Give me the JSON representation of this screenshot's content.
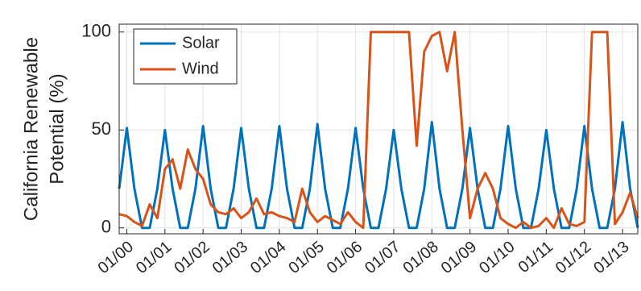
{
  "chart_data": {
    "type": "line",
    "ylabel": [
      "California Renewable",
      "Potential (%)"
    ],
    "x": [
      -0.2,
      0,
      0.2,
      0.4,
      0.6,
      0.8,
      1.0,
      1.2,
      1.4,
      1.6,
      1.8,
      2.0,
      2.2,
      2.4,
      2.6,
      2.8,
      3.0,
      3.2,
      3.4,
      3.6,
      3.8,
      4.0,
      4.2,
      4.4,
      4.6,
      4.8,
      5.0,
      5.2,
      5.4,
      5.6,
      5.8,
      6.0,
      6.2,
      6.4,
      6.6,
      6.8,
      7.0,
      7.2,
      7.4,
      7.6,
      7.8,
      8.0,
      8.2,
      8.4,
      8.6,
      8.8,
      9.0,
      9.2,
      9.4,
      9.6,
      9.8,
      10.0,
      10.2,
      10.4,
      10.6,
      10.8,
      11.0,
      11.2,
      11.4,
      11.6,
      11.8,
      12.0,
      12.2,
      12.4,
      12.6,
      12.8,
      13.0,
      13.2,
      13.4
    ],
    "series": [
      {
        "name": "Solar",
        "color": "#0072bd",
        "values": [
          20,
          51,
          20,
          0,
          0,
          20,
          50,
          20,
          0,
          0,
          20,
          52,
          20,
          0,
          0,
          20,
          51,
          20,
          0,
          0,
          20,
          52,
          20,
          0,
          0,
          20,
          53,
          20,
          0,
          0,
          20,
          51,
          20,
          0,
          0,
          20,
          50,
          20,
          0,
          0,
          20,
          54,
          20,
          0,
          0,
          20,
          51,
          20,
          0,
          0,
          20,
          52,
          20,
          0,
          0,
          20,
          50,
          20,
          0,
          0,
          20,
          52,
          20,
          0,
          0,
          20,
          54,
          20,
          0
        ]
      },
      {
        "name": "Wind",
        "color": "#d95319",
        "values": [
          7,
          6,
          3,
          1,
          12,
          5,
          30,
          35,
          20,
          40,
          30,
          25,
          12,
          8,
          7,
          10,
          5,
          8,
          15,
          7,
          8,
          6,
          5,
          3,
          20,
          8,
          3,
          6,
          4,
          2,
          8,
          3,
          0,
          100,
          100,
          100,
          100,
          100,
          100,
          42,
          90,
          98,
          100,
          80,
          100,
          50,
          5,
          20,
          28,
          20,
          5,
          2,
          0,
          3,
          0,
          1,
          5,
          0,
          10,
          2,
          1,
          3,
          100,
          100,
          100,
          2,
          8,
          18,
          5
        ]
      }
    ],
    "xlim": [
      -0.2,
      13.4
    ],
    "xticks": [
      {
        "value": 0,
        "label": "01/00"
      },
      {
        "value": 1,
        "label": "01/01"
      },
      {
        "value": 2,
        "label": "01/02"
      },
      {
        "value": 3,
        "label": "01/03"
      },
      {
        "value": 4,
        "label": "01/04"
      },
      {
        "value": 5,
        "label": "01/05"
      },
      {
        "value": 6,
        "label": "01/06"
      },
      {
        "value": 7,
        "label": "01/07"
      },
      {
        "value": 8,
        "label": "01/08"
      },
      {
        "value": 9,
        "label": "01/09"
      },
      {
        "value": 10,
        "label": "01/10"
      },
      {
        "value": 11,
        "label": "01/11"
      },
      {
        "value": 12,
        "label": "01/12"
      },
      {
        "value": 13,
        "label": "01/13"
      }
    ],
    "ylim": [
      -3,
      104
    ],
    "yticks": [
      0,
      50,
      100
    ],
    "grid": true,
    "legend": "upper-left"
  }
}
